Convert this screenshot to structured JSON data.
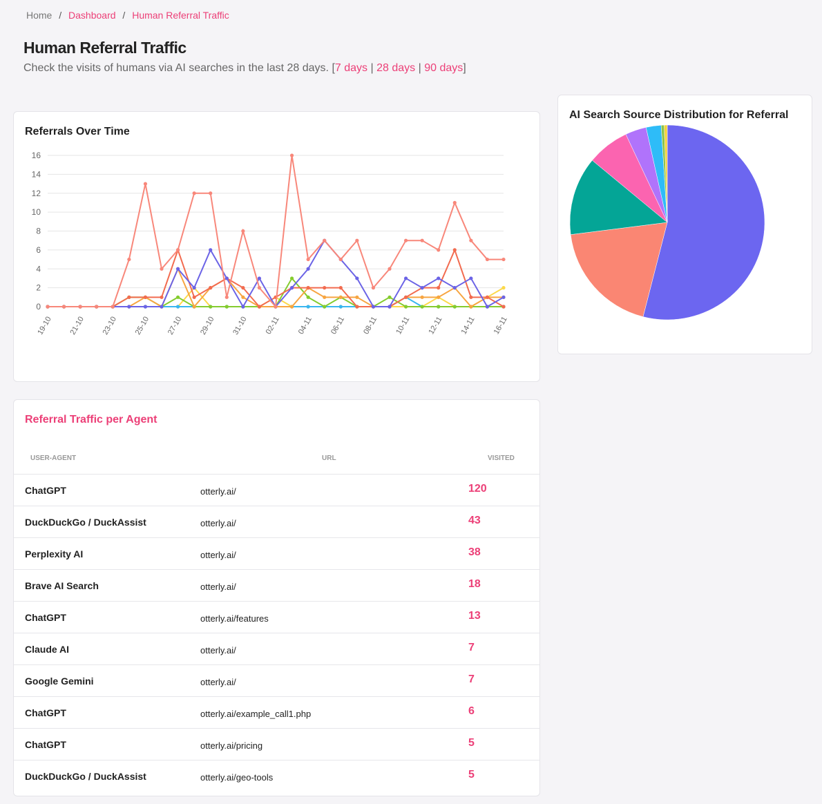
{
  "breadcrumb": [
    "Home",
    "Dashboard",
    "Human Referral Traffic"
  ],
  "breadcrumb_separator": "/",
  "header": {
    "title": "Human Referral Traffic",
    "subtitle": "Check the visits of humans via AI searches in the last 28 days. [",
    "range_links": [
      "7 days",
      "28 days",
      "90 days"
    ],
    "link_separator": "|",
    "subtitle_close": "]"
  },
  "chart_data": [
    {
      "type": "line",
      "title": "Referrals Over Time",
      "categories": [
        "19-10",
        null,
        "21-10",
        null,
        "23-10",
        null,
        "25-10",
        null,
        "27-10",
        null,
        "29-10",
        null,
        "31-10",
        null,
        "02-11",
        null,
        "04-11",
        null,
        "06-11",
        null,
        "08-11",
        null,
        "10-11",
        null,
        "12-11",
        null,
        "14-11",
        null,
        "16-11"
      ],
      "ylim": [
        0,
        16
      ],
      "yticks": [
        0,
        2,
        4,
        6,
        8,
        10,
        12,
        14,
        16
      ],
      "grid": true,
      "series": [
        {
          "color": "#fcd94a",
          "values": [
            0,
            0,
            0,
            0,
            0,
            0,
            0,
            0,
            0,
            2,
            0,
            0,
            0,
            0,
            1,
            0,
            0,
            0,
            0,
            0,
            0,
            0,
            0,
            0,
            1,
            0,
            0,
            1,
            2
          ]
        },
        {
          "color": "#38b6f0",
          "values": [
            0,
            0,
            0,
            0,
            0,
            0,
            0,
            0,
            0,
            0,
            0,
            0,
            0,
            0,
            0,
            0,
            0,
            0,
            0,
            0,
            0,
            0,
            1,
            0,
            0,
            0,
            0,
            0,
            0
          ]
        },
        {
          "color": "#84cc2e",
          "values": [
            0,
            0,
            0,
            0,
            0,
            1,
            1,
            0,
            1,
            0,
            0,
            0,
            0,
            0,
            0,
            3,
            1,
            0,
            1,
            0,
            0,
            1,
            0,
            0,
            0,
            0,
            0,
            0,
            0
          ]
        },
        {
          "color": "#f7a541",
          "values": [
            0,
            0,
            0,
            0,
            0,
            0,
            1,
            0,
            4,
            0,
            2,
            3,
            1,
            0,
            0,
            0,
            2,
            1,
            1,
            1,
            0,
            0,
            1,
            1,
            1,
            2,
            0,
            1,
            1
          ]
        },
        {
          "color": "#f26b4f",
          "values": [
            0,
            0,
            0,
            0,
            0,
            1,
            1,
            1,
            6,
            1,
            2,
            3,
            2,
            0,
            1,
            2,
            2,
            2,
            2,
            0,
            0,
            0,
            1,
            2,
            2,
            6,
            1,
            1,
            0
          ]
        },
        {
          "color": "#6b63e6",
          "values": [
            0,
            0,
            0,
            0,
            0,
            0,
            0,
            0,
            4,
            2,
            6,
            3,
            0,
            3,
            0,
            2,
            4,
            7,
            5,
            3,
            0,
            0,
            3,
            2,
            3,
            2,
            3,
            0,
            1
          ]
        },
        {
          "color": "#f8877a",
          "values": [
            0,
            0,
            0,
            0,
            0,
            5,
            13,
            4,
            6,
            12,
            12,
            1,
            8,
            2,
            0,
            16,
            5,
            7,
            5,
            7,
            2,
            4,
            7,
            7,
            6,
            11,
            7,
            5,
            5
          ]
        }
      ]
    },
    {
      "type": "pie",
      "title": "AI Search Source Distribution for Referral",
      "values": [
        54,
        19,
        13,
        7,
        3.5,
        2.5,
        0.5,
        0.5
      ],
      "colors": [
        "#6c66f0",
        "#fa8673",
        "#04a596",
        "#fb64b0",
        "#b073fb",
        "#2ebcf8",
        "#8bc34a",
        "#f5d23a"
      ]
    }
  ],
  "table": {
    "title": "Referral Traffic per Agent",
    "columns": [
      "USER-AGENT",
      "URL",
      "VISITED"
    ],
    "rows": [
      [
        "ChatGPT",
        "otterly.ai/",
        "120"
      ],
      [
        "DuckDuckGo / DuckAssist",
        "otterly.ai/",
        "43"
      ],
      [
        "Perplexity AI",
        "otterly.ai/",
        "38"
      ],
      [
        "Brave AI Search",
        "otterly.ai/",
        "18"
      ],
      [
        "ChatGPT",
        "otterly.ai/features",
        "13"
      ],
      [
        "Claude AI",
        "otterly.ai/",
        "7"
      ],
      [
        "Google Gemini",
        "otterly.ai/",
        "7"
      ],
      [
        "ChatGPT",
        "otterly.ai/example_call1.php",
        "6"
      ],
      [
        "ChatGPT",
        "otterly.ai/pricing",
        "5"
      ],
      [
        "DuckDuckGo / DuckAssist",
        "otterly.ai/geo-tools",
        "5"
      ]
    ]
  }
}
